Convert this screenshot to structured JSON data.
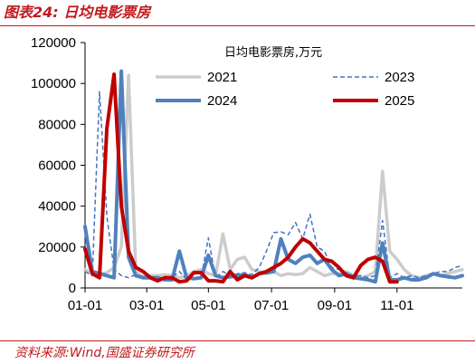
{
  "figure": {
    "title": "图表24:  日均电影票房",
    "source": "资料来源:Wind,国盛证券研究所"
  },
  "chart_data": {
    "type": "line",
    "unit_label": "日均电影票房,万元",
    "ylim": [
      0,
      120000
    ],
    "yticks": [
      0,
      20000,
      40000,
      60000,
      80000,
      100000,
      120000
    ],
    "ytick_labels": [
      "0",
      "20000",
      "40000",
      "60000",
      "80000",
      "100000",
      "120000"
    ],
    "xlim": [
      1,
      53
    ],
    "xticks": [
      1,
      9.5,
      18,
      26.7,
      35.4,
      44
    ],
    "xtick_labels": [
      "01-01",
      "03-01",
      "05-01",
      "07-01",
      "09-01",
      "11-01"
    ],
    "grid": false,
    "legend_position": "top",
    "series": [
      {
        "name": "2021",
        "color": "#cccccc",
        "dash": "solid",
        "width": 3.5,
        "x": [
          1,
          2,
          3,
          4,
          5,
          6,
          7,
          8,
          9,
          10,
          11,
          12,
          13,
          14,
          15,
          16,
          17,
          18,
          19,
          20,
          21,
          22,
          23,
          24,
          25,
          26,
          27,
          28,
          29,
          30,
          31,
          32,
          33,
          34,
          35,
          36,
          37,
          38,
          39,
          40,
          41,
          42,
          43,
          44,
          45,
          46,
          47,
          48,
          49,
          50,
          51,
          52,
          53
        ],
        "y": [
          9000,
          7000,
          6500,
          7500,
          10000,
          20000,
          104000,
          8000,
          5500,
          6000,
          6000,
          6500,
          6000,
          5000,
          6000,
          8000,
          9000,
          7000,
          6000,
          26500,
          9000,
          14000,
          15000,
          9000,
          8000,
          7000,
          8000,
          6000,
          7000,
          6500,
          7000,
          10000,
          8000,
          6000,
          7000,
          7000,
          8000,
          6000,
          5000,
          6000,
          8000,
          57000,
          18000,
          14000,
          9000,
          6000,
          5000,
          6000,
          7000,
          6000,
          7000,
          8000,
          9000
        ]
      },
      {
        "name": "2023",
        "color": "#4472c4",
        "dash": "dashed",
        "width": 1.5,
        "x": [
          1,
          2,
          3,
          4,
          5,
          6,
          7,
          8,
          9,
          10,
          11,
          12,
          13,
          14,
          15,
          16,
          17,
          18,
          19,
          20,
          21,
          22,
          23,
          24,
          25,
          26,
          27,
          28,
          29,
          30,
          31,
          32,
          33,
          34,
          35,
          36,
          37,
          38,
          39,
          40,
          41,
          42,
          43,
          44,
          45,
          46,
          47,
          48,
          49,
          50,
          51,
          52,
          53
        ],
        "y": [
          8000,
          6000,
          96000,
          35000,
          9000,
          6000,
          5000,
          6500,
          5500,
          5000,
          4500,
          4000,
          5000,
          8000,
          4000,
          5000,
          5000,
          24500,
          5000,
          8000,
          6000,
          7000,
          7500,
          6500,
          10000,
          18000,
          27000,
          27500,
          26000,
          32000,
          24000,
          36000,
          20000,
          18000,
          10000,
          9000,
          7500,
          6000,
          6000,
          5000,
          6000,
          33000,
          5000,
          7000,
          5000,
          6000,
          5000,
          6000,
          7000,
          8000,
          8000,
          10000,
          11000
        ]
      },
      {
        "name": "2024",
        "color": "#4f81bd",
        "dash": "solid",
        "width": 4,
        "x": [
          1,
          2,
          3,
          4,
          5,
          6,
          7,
          8,
          9,
          10,
          11,
          12,
          13,
          14,
          15,
          16,
          17,
          18,
          19,
          20,
          21,
          22,
          23,
          24,
          25,
          26,
          27,
          28,
          29,
          30,
          31,
          32,
          33,
          34,
          35,
          36,
          37,
          38,
          39,
          40,
          41,
          42,
          43,
          44,
          45,
          46,
          47,
          48,
          49,
          50,
          51,
          52,
          53
        ],
        "y": [
          30000,
          8000,
          7000,
          6000,
          5000,
          106000,
          15000,
          6000,
          5000,
          5000,
          5000,
          4000,
          4000,
          18000,
          5000,
          4500,
          5000,
          16000,
          6000,
          5000,
          5500,
          6000,
          6500,
          5000,
          7000,
          7500,
          8000,
          24000,
          14000,
          12000,
          15000,
          16000,
          12000,
          14000,
          9000,
          6000,
          7000,
          5000,
          4500,
          4000,
          3000,
          22000,
          4000,
          4000,
          5000,
          4000,
          4000,
          5000,
          7000,
          6000,
          5500,
          5000,
          6000
        ]
      },
      {
        "name": "2025",
        "color": "#c00000",
        "dash": "solid",
        "width": 4,
        "x": [
          1,
          2,
          3,
          4,
          5,
          6,
          7,
          8,
          9,
          10,
          11,
          12,
          13,
          14,
          15,
          16,
          17,
          18,
          19,
          20,
          21,
          22,
          23,
          24,
          25,
          26,
          27,
          28,
          29,
          30,
          31,
          32,
          33,
          34,
          35,
          36,
          37,
          38,
          39,
          40,
          41,
          42,
          43,
          44
        ],
        "y": [
          19000,
          7000,
          5000,
          78000,
          104500,
          40000,
          18000,
          10000,
          8000,
          5000,
          3500,
          5000,
          5000,
          3000,
          3500,
          7500,
          7500,
          3500,
          3500,
          3000,
          8000,
          4000,
          6000,
          5000,
          7000,
          8000,
          10000,
          12000,
          15000,
          20000,
          24000,
          22000,
          18000,
          14000,
          13000,
          10000,
          6000,
          5000,
          11000,
          14000,
          15000,
          13000,
          3000,
          3000
        ]
      }
    ]
  }
}
